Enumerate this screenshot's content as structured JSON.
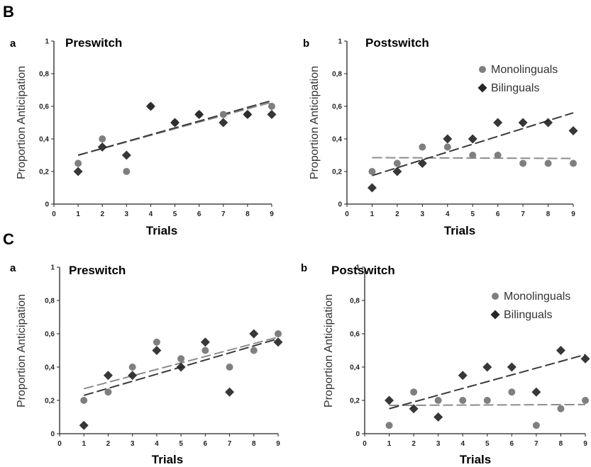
{
  "sections": [
    {
      "label": "B"
    },
    {
      "label": "C"
    }
  ],
  "colors": {
    "monolinguals": "#7f7f7f",
    "bilinguals": "#262626",
    "monolinguals_trend": "#8c8c8c",
    "bilinguals_trend": "#3a3a3a",
    "axis": "#222222"
  },
  "legend": {
    "monolinguals": "Monolinguals",
    "bilinguals": "Bilinguals"
  },
  "chart_data": [
    {
      "panel": "a",
      "title": "Preswitch",
      "type": "scatter",
      "xlabel": "Trials",
      "ylabel": "Proportion Anticipation",
      "xlim": [
        0,
        9
      ],
      "ylim": [
        0,
        1
      ],
      "xticks": [
        "0",
        "1",
        "2",
        "3",
        "4",
        "5",
        "6",
        "7",
        "8",
        "9"
      ],
      "yticks": [
        "0",
        "0,2",
        "0,4",
        "0,6",
        "0,8",
        "1"
      ],
      "x": [
        1,
        2,
        3,
        4,
        5,
        6,
        7,
        8,
        9
      ],
      "series": [
        {
          "name": "Monolinguals",
          "marker": "circle",
          "values": [
            0.25,
            0.4,
            0.2,
            0.6,
            0.5,
            0.55,
            0.55,
            0.55,
            0.6
          ],
          "trend": [
            0.3,
            0.625
          ]
        },
        {
          "name": "Bilinguals",
          "marker": "diamond",
          "values": [
            0.2,
            0.35,
            0.3,
            0.6,
            0.5,
            0.55,
            0.5,
            0.55,
            0.55
          ],
          "trend": [
            0.3,
            0.635
          ]
        }
      ],
      "legend": false
    },
    {
      "panel": "b",
      "title": "Postswitch",
      "type": "scatter",
      "xlabel": "Trials",
      "ylabel": "Proportion Anticipation",
      "xlim": [
        0,
        9
      ],
      "ylim": [
        0,
        1
      ],
      "xticks": [
        "0",
        "1",
        "2",
        "3",
        "4",
        "5",
        "6",
        "7",
        "8",
        "9"
      ],
      "yticks": [
        "0",
        "0,2",
        "0,4",
        "0,6",
        "0,8",
        "1"
      ],
      "x": [
        1,
        2,
        3,
        4,
        5,
        6,
        7,
        8,
        9
      ],
      "series": [
        {
          "name": "Monolinguals",
          "marker": "circle",
          "values": [
            0.2,
            0.25,
            0.35,
            0.35,
            0.3,
            0.3,
            0.25,
            0.25,
            0.25
          ],
          "trend": [
            0.285,
            0.28
          ]
        },
        {
          "name": "Bilinguals",
          "marker": "diamond",
          "values": [
            0.1,
            0.2,
            0.25,
            0.4,
            0.4,
            0.5,
            0.5,
            0.5,
            0.45
          ],
          "trend": [
            0.175,
            0.56
          ]
        }
      ],
      "legend": true,
      "legend_position": "top-right"
    },
    {
      "panel": "a",
      "title": "Preswitch",
      "type": "scatter",
      "xlabel": "Trials",
      "ylabel": "Proportion Anticipation",
      "xlim": [
        0,
        9
      ],
      "ylim": [
        0,
        1
      ],
      "xticks": [
        "0",
        "1",
        "2",
        "3",
        "4",
        "5",
        "6",
        "7",
        "8",
        "9"
      ],
      "yticks": [
        "0",
        "0,2",
        "0,4",
        "0,6",
        "0,8",
        "1"
      ],
      "x": [
        1,
        2,
        3,
        4,
        5,
        6,
        7,
        8,
        9
      ],
      "series": [
        {
          "name": "Monolinguals",
          "marker": "circle",
          "values": [
            0.2,
            0.25,
            0.4,
            0.55,
            0.45,
            0.5,
            0.4,
            0.5,
            0.6
          ],
          "trend": [
            0.27,
            0.58
          ]
        },
        {
          "name": "Bilinguals",
          "marker": "diamond",
          "values": [
            0.05,
            0.35,
            0.35,
            0.5,
            0.4,
            0.55,
            0.25,
            0.6,
            0.55
          ],
          "trend": [
            0.23,
            0.57
          ]
        }
      ],
      "legend": false
    },
    {
      "panel": "b",
      "title": "Postswitch",
      "type": "scatter",
      "xlabel": "Trials",
      "ylabel": "Proportion Anticipation",
      "xlim": [
        0,
        9
      ],
      "ylim": [
        0,
        1
      ],
      "xticks": [
        "0",
        "1",
        "2",
        "3",
        "4",
        "5",
        "6",
        "7",
        "8",
        "9"
      ],
      "yticks": [
        "0",
        "0,2",
        "0,4",
        "0,6",
        "0,8",
        "1"
      ],
      "x": [
        1,
        2,
        3,
        4,
        5,
        6,
        7,
        8,
        9
      ],
      "series": [
        {
          "name": "Monolinguals",
          "marker": "circle",
          "values": [
            0.05,
            0.25,
            0.2,
            0.2,
            0.2,
            0.25,
            0.05,
            0.15,
            0.2
          ],
          "trend": [
            0.17,
            0.175
          ]
        },
        {
          "name": "Bilinguals",
          "marker": "diamond",
          "values": [
            0.2,
            0.15,
            0.1,
            0.35,
            0.4,
            0.4,
            0.25,
            0.5,
            0.45
          ],
          "trend": [
            0.15,
            0.475
          ]
        }
      ],
      "legend": true,
      "legend_position": "top-right"
    }
  ]
}
